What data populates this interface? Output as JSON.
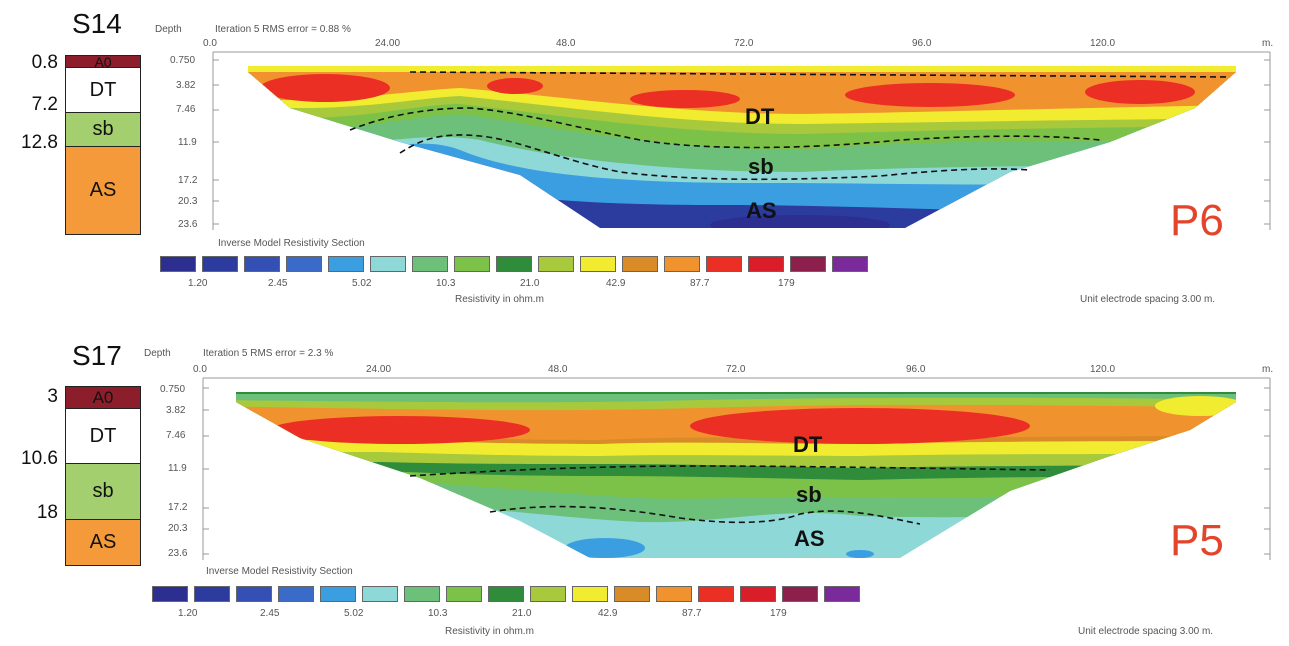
{
  "colors": {
    "A0": "#8b1e2a",
    "DT": "#ffffff",
    "sb": "#a3cf6e",
    "AS": "#f59a3a",
    "profile_label": "#e2452b",
    "palette": [
      "#2c2e90",
      "#2c3b9e",
      "#3550b5",
      "#3a6bc8",
      "#3a9ee0",
      "#8ed8d8",
      "#6cc07a",
      "#7dc248",
      "#2e8c3b",
      "#a8c93c",
      "#f2ec30",
      "#d98b28",
      "#f0922e",
      "#ec2f24",
      "#d91e2a",
      "#8d1f4c",
      "#7a2a9a"
    ]
  },
  "panels": [
    {
      "borehole": {
        "title": "S14",
        "layers": [
          {
            "label": "A0",
            "depth": "0.8",
            "color": "#8b1e2a"
          },
          {
            "label": "DT",
            "depth": "7.2",
            "color": "#ffffff"
          },
          {
            "label": "sb",
            "depth": "12.8",
            "color": "#a3cf6e"
          },
          {
            "label": "AS",
            "depth": "",
            "color": "#f59a3a"
          }
        ]
      },
      "depth_label": "Depth",
      "header": "Iteration 5 RMS error = 0.88 %",
      "x_ticks": [
        "0.0",
        "24.00",
        "48.0",
        "72.0",
        "96.0",
        "120.0"
      ],
      "x_unit": "m.",
      "depth_ticks": [
        "0.750",
        "3.82",
        "7.46",
        "11.9",
        "17.2",
        "20.3",
        "23.6"
      ],
      "zones": [
        "DT",
        "sb",
        "AS"
      ],
      "profile": "P6",
      "colorbar_title": "Inverse Model Resistivity Section",
      "colorbar_ticks": [
        "1.20",
        "2.45",
        "5.02",
        "10.3",
        "21.0",
        "42.9",
        "87.7",
        "179"
      ],
      "colorbar_unit": "Resistivity in ohm.m",
      "spacing": "Unit electrode spacing 3.00 m."
    },
    {
      "borehole": {
        "title": "S17",
        "layers": [
          {
            "label": "A0",
            "depth": "3",
            "color": "#8b1e2a"
          },
          {
            "label": "DT",
            "depth": "10.6",
            "color": "#ffffff"
          },
          {
            "label": "sb",
            "depth": "18",
            "color": "#a3cf6e"
          },
          {
            "label": "AS",
            "depth": "",
            "color": "#f59a3a"
          }
        ]
      },
      "depth_label": "Depth",
      "header": "Iteration 5 RMS error = 2.3 %",
      "x_ticks": [
        "0.0",
        "24.00",
        "48.0",
        "72.0",
        "96.0",
        "120.0"
      ],
      "x_unit": "m.",
      "depth_ticks": [
        "0.750",
        "3.82",
        "7.46",
        "11.9",
        "17.2",
        "20.3",
        "23.6"
      ],
      "zones": [
        "DT",
        "sb",
        "AS"
      ],
      "profile": "P5",
      "colorbar_title": "Inverse Model Resistivity Section",
      "colorbar_ticks": [
        "1.20",
        "2.45",
        "5.02",
        "10.3",
        "21.0",
        "42.9",
        "87.7",
        "179"
      ],
      "colorbar_unit": "Resistivity in ohm.m",
      "spacing": "Unit electrode spacing 3.00 m."
    }
  ]
}
